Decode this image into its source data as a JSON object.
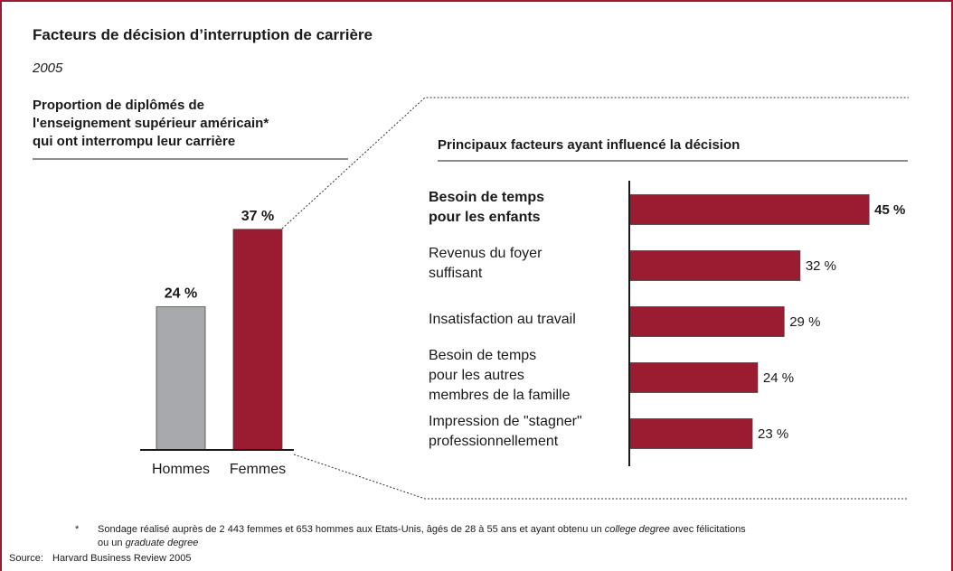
{
  "title": "Facteurs de décision d’interruption de carrière",
  "subtitle": "2005",
  "chart_data": [
    {
      "type": "bar",
      "title": "Proportion de diplômés de\nl'enseignement supérieur américain*\nqui ont interrompu leur carrière",
      "categories": [
        "Hommes",
        "Femmes"
      ],
      "values": [
        24,
        37
      ],
      "value_labels": [
        "24 %",
        "37 %"
      ],
      "colors": [
        "#a7a9ac",
        "#9b1b30"
      ],
      "ylim": [
        0,
        40
      ]
    },
    {
      "type": "hbar",
      "title": "Principaux facteurs ayant influencé la décision",
      "categories": [
        "Besoin de temps\npour les enfants",
        "Revenus du foyer\nsuffisant",
        "Insatisfaction au travail",
        "Besoin de temps\npour les autres\nmembres de la famille",
        "Impression de \"stagner\"\nprofessionnellement"
      ],
      "values": [
        45,
        32,
        29,
        24,
        23
      ],
      "value_labels": [
        "45 %",
        "32 %",
        "29 %",
        "24 %",
        "23 %"
      ],
      "bold": [
        true,
        false,
        false,
        false,
        false
      ],
      "color": "#9b1b30",
      "xlim": [
        0,
        50
      ]
    }
  ],
  "footnote": {
    "marker": "*",
    "lines": [
      [
        "Sondage réalisé auprès de 2 443 femmes et 653 hommes aux Etats-Unis, âgés de 28 à 55 ans et ayant obtenu un ",
        "college degree",
        " avec félicitations"
      ],
      [
        "ou un ",
        "graduate degree"
      ]
    ]
  },
  "source": {
    "label": "Source:",
    "text": "Harvard Business Review 2005"
  }
}
